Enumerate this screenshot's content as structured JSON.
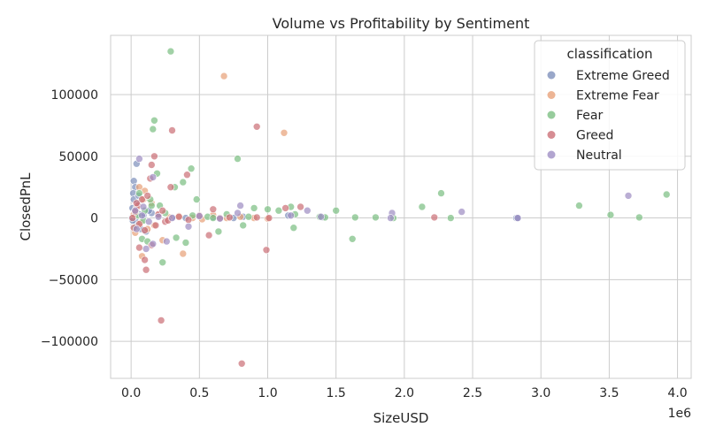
{
  "chart_data": {
    "type": "scatter",
    "title": "Volume vs Profitability by Sentiment",
    "xlabel": "SizeUSD",
    "ylabel": "ClosedPnL",
    "x_offset_label": "1e6",
    "xlim": [
      -150000,
      4100000
    ],
    "ylim": [
      -130000,
      148000
    ],
    "xticks": [
      0,
      500000,
      1000000,
      1500000,
      2000000,
      2500000,
      3000000,
      3500000,
      4000000
    ],
    "xtick_labels": [
      "0.0",
      "0.5",
      "1.0",
      "1.5",
      "2.0",
      "2.5",
      "3.0",
      "3.5",
      "4.0"
    ],
    "yticks": [
      -100000,
      -50000,
      0,
      50000,
      100000
    ],
    "ytick_labels": [
      "−100000",
      "−50000",
      "0",
      "50000",
      "100000"
    ],
    "grid": true,
    "legend": {
      "title": "classification",
      "placement": "top-right"
    },
    "series": [
      {
        "name": "Extreme Greed",
        "color": "#8091bc",
        "points": [
          [
            20000,
            30000
          ],
          [
            30000,
            25000
          ],
          [
            40000,
            44000
          ],
          [
            15000,
            20000
          ],
          [
            50000,
            12000
          ],
          [
            10000,
            8000
          ],
          [
            25000,
            5000
          ],
          [
            60000,
            3000
          ],
          [
            80000,
            1000
          ],
          [
            5000,
            0
          ],
          [
            35000,
            -3000
          ],
          [
            45000,
            -6000
          ],
          [
            70000,
            -9000
          ],
          [
            110000,
            -11000
          ],
          [
            90000,
            2000
          ],
          [
            150000,
            4000
          ],
          [
            200000,
            1500
          ],
          [
            300000,
            500
          ],
          [
            400000,
            0
          ],
          [
            600000,
            800
          ],
          [
            750000,
            0
          ],
          [
            820000,
            1000
          ],
          [
            1150000,
            2000
          ],
          [
            1400000,
            500
          ],
          [
            2820000,
            0
          ],
          [
            2830000,
            -200
          ],
          [
            20000,
            15000
          ],
          [
            55000,
            18000
          ],
          [
            12000,
            -2000
          ],
          [
            130000,
            6000
          ]
        ]
      },
      {
        "name": "Extreme Fear",
        "color": "#e8a27a",
        "points": [
          [
            680000,
            115000
          ],
          [
            1120000,
            69000
          ],
          [
            380000,
            -29000
          ],
          [
            80000,
            -31000
          ],
          [
            230000,
            -18000
          ],
          [
            60000,
            25000
          ],
          [
            100000,
            22000
          ],
          [
            150000,
            12000
          ],
          [
            40000,
            8000
          ],
          [
            20000,
            3000
          ],
          [
            70000,
            -4000
          ],
          [
            120000,
            -9000
          ],
          [
            200000,
            2000
          ],
          [
            280000,
            500
          ],
          [
            350000,
            1500
          ],
          [
            450000,
            0
          ],
          [
            520000,
            -1000
          ],
          [
            600000,
            2500
          ],
          [
            700000,
            0
          ],
          [
            800000,
            1000
          ],
          [
            900000,
            0
          ],
          [
            1000000,
            -500
          ],
          [
            30000,
            -12000
          ],
          [
            90000,
            15000
          ],
          [
            170000,
            -6000
          ]
        ]
      },
      {
        "name": "Fear",
        "color": "#7dbf83",
        "points": [
          [
            290000,
            135000
          ],
          [
            170000,
            79000
          ],
          [
            160000,
            72000
          ],
          [
            780000,
            48000
          ],
          [
            440000,
            40000
          ],
          [
            190000,
            36000
          ],
          [
            380000,
            29000
          ],
          [
            320000,
            25000
          ],
          [
            480000,
            15000
          ],
          [
            150000,
            10000
          ],
          [
            100000,
            6000
          ],
          [
            50000,
            2000
          ],
          [
            30000,
            -8000
          ],
          [
            80000,
            -17000
          ],
          [
            120000,
            -19000
          ],
          [
            230000,
            -36000
          ],
          [
            330000,
            -16000
          ],
          [
            400000,
            -20000
          ],
          [
            640000,
            -11000
          ],
          [
            820000,
            -6000
          ],
          [
            1190000,
            -8000
          ],
          [
            1620000,
            -17000
          ],
          [
            1000000,
            7000
          ],
          [
            1080000,
            6000
          ],
          [
            1170000,
            9000
          ],
          [
            1500000,
            6000
          ],
          [
            1640000,
            500
          ],
          [
            1790000,
            500
          ],
          [
            1920000,
            0
          ],
          [
            2130000,
            9000
          ],
          [
            2270000,
            20000
          ],
          [
            2340000,
            0
          ],
          [
            3280000,
            10000
          ],
          [
            3510000,
            2500
          ],
          [
            3720000,
            500
          ],
          [
            3920000,
            19000
          ],
          [
            900000,
            8000
          ],
          [
            700000,
            3000
          ],
          [
            560000,
            1000
          ],
          [
            250000,
            4000
          ],
          [
            210000,
            10000
          ],
          [
            140000,
            15000
          ],
          [
            60000,
            20000
          ],
          [
            90000,
            -2000
          ],
          [
            450000,
            2000
          ],
          [
            1420000,
            500
          ],
          [
            1380000,
            1000
          ],
          [
            1200000,
            3000
          ],
          [
            860000,
            1000
          ],
          [
            600000,
            0
          ]
        ]
      },
      {
        "name": "Greed",
        "color": "#cc7178",
        "points": [
          [
            300000,
            71000
          ],
          [
            920000,
            74000
          ],
          [
            170000,
            50000
          ],
          [
            150000,
            43000
          ],
          [
            410000,
            35000
          ],
          [
            140000,
            32000
          ],
          [
            290000,
            25000
          ],
          [
            80000,
            15000
          ],
          [
            50000,
            10000
          ],
          [
            30000,
            5000
          ],
          [
            10000,
            0
          ],
          [
            60000,
            -5000
          ],
          [
            100000,
            -10000
          ],
          [
            150000,
            -22000
          ],
          [
            60000,
            -24000
          ],
          [
            100000,
            -34000
          ],
          [
            110000,
            -42000
          ],
          [
            220000,
            -83000
          ],
          [
            810000,
            -118000
          ],
          [
            990000,
            -26000
          ],
          [
            570000,
            -14000
          ],
          [
            600000,
            7000
          ],
          [
            1130000,
            8000
          ],
          [
            1240000,
            9000
          ],
          [
            1010000,
            0
          ],
          [
            920000,
            500
          ],
          [
            2220000,
            500
          ],
          [
            200000,
            3000
          ],
          [
            250000,
            -3000
          ],
          [
            350000,
            1000
          ],
          [
            420000,
            -1500
          ],
          [
            500000,
            2000
          ],
          [
            650000,
            0
          ],
          [
            720000,
            500
          ],
          [
            120000,
            18000
          ],
          [
            40000,
            12000
          ],
          [
            20000,
            -8000
          ],
          [
            180000,
            -6000
          ],
          [
            230000,
            6000
          ],
          [
            270000,
            -2000
          ]
        ]
      },
      {
        "name": "Neutral",
        "color": "#9f8fc4",
        "points": [
          [
            60000,
            48000
          ],
          [
            160000,
            33000
          ],
          [
            260000,
            -19000
          ],
          [
            160000,
            -21000
          ],
          [
            110000,
            -25000
          ],
          [
            420000,
            -7000
          ],
          [
            780000,
            4000
          ],
          [
            800000,
            10000
          ],
          [
            1170000,
            2000
          ],
          [
            1290000,
            6000
          ],
          [
            1390000,
            1000
          ],
          [
            1910000,
            4000
          ],
          [
            2420000,
            5000
          ],
          [
            3640000,
            18000
          ],
          [
            2830000,
            0
          ],
          [
            1900000,
            0
          ],
          [
            30000,
            6000
          ],
          [
            80000,
            2000
          ],
          [
            130000,
            -3000
          ],
          [
            200000,
            1000
          ],
          [
            300000,
            0
          ],
          [
            500000,
            1500
          ],
          [
            650000,
            -500
          ],
          [
            40000,
            -9000
          ],
          [
            90000,
            9000
          ]
        ]
      }
    ]
  }
}
